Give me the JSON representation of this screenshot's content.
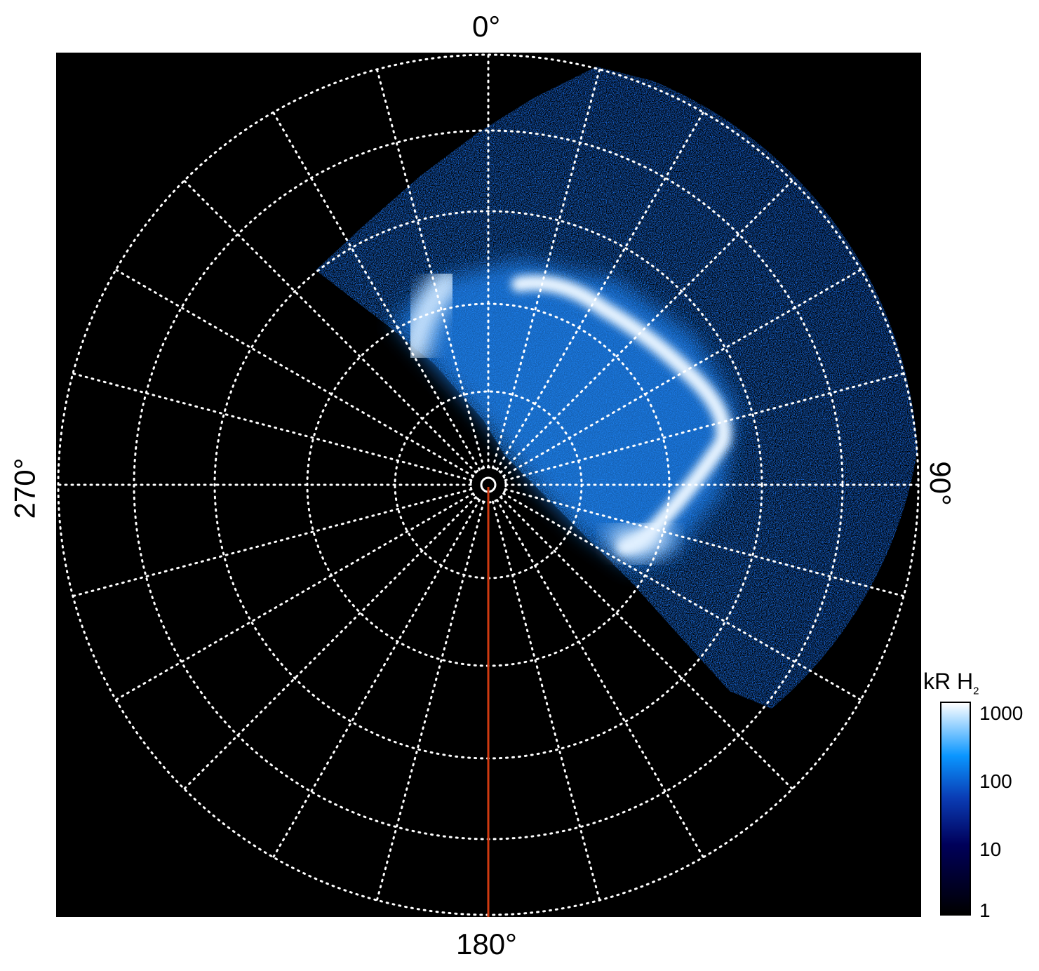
{
  "chart_data": {
    "type": "heatmap",
    "projection": "polar",
    "angle_labels": {
      "top": "0°",
      "right": "90°",
      "bottom": "180°",
      "left": "270°"
    },
    "grid": true,
    "colorbar": {
      "label_main": "kR H",
      "label_sub": "2",
      "scale": "log",
      "range": [
        1,
        1000
      ],
      "ticks": [
        "1000",
        "100",
        "10",
        "1"
      ],
      "colors": [
        "#000000",
        "#00005a",
        "#0a3cb4",
        "#0a96ff",
        "#ffffff"
      ]
    },
    "marker_line_color": "#d03a10",
    "marker_line_angle_deg": 180
  }
}
